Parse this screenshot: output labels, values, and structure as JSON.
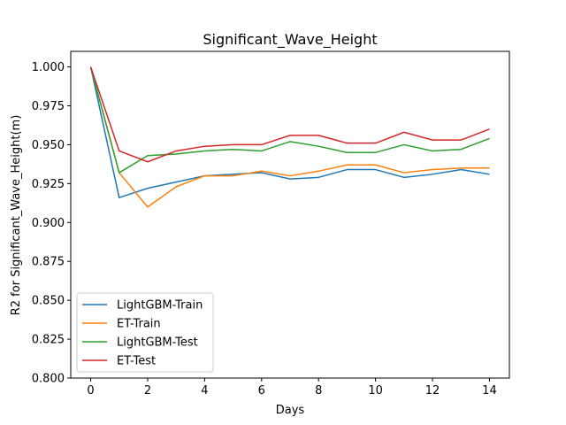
{
  "chart_data": {
    "type": "line",
    "title": "Significant_Wave_Height",
    "xlabel": "Days",
    "ylabel": "R2 for Significant_Wave_Height(m)",
    "xlim": [
      -0.7,
      14.7
    ],
    "ylim": [
      0.8,
      1.01
    ],
    "xticks": [
      0,
      2,
      4,
      6,
      8,
      10,
      12,
      14
    ],
    "yticks": [
      0.8,
      0.825,
      0.85,
      0.875,
      0.9,
      0.925,
      0.95,
      0.975,
      1.0
    ],
    "ytick_labels": [
      "0.800",
      "0.825",
      "0.850",
      "0.875",
      "0.900",
      "0.925",
      "0.950",
      "0.975",
      "1.000"
    ],
    "grid": false,
    "legend_position": "lower-left",
    "x": [
      0,
      1,
      2,
      3,
      4,
      5,
      6,
      7,
      8,
      9,
      10,
      11,
      12,
      13,
      14
    ],
    "series": [
      {
        "name": "LightGBM-Train",
        "color": "#1f77b4",
        "values": [
          1.0,
          0.916,
          0.922,
          0.926,
          0.93,
          0.931,
          0.932,
          0.928,
          0.929,
          0.934,
          0.934,
          0.929,
          0.931,
          0.934,
          0.931
        ]
      },
      {
        "name": "ET-Train",
        "color": "#ff7f0e",
        "values": [
          1.0,
          0.932,
          0.91,
          0.923,
          0.93,
          0.93,
          0.933,
          0.93,
          0.933,
          0.937,
          0.937,
          0.932,
          0.934,
          0.935,
          0.935
        ]
      },
      {
        "name": "LightGBM-Test",
        "color": "#2ca02c",
        "values": [
          1.0,
          0.932,
          0.943,
          0.944,
          0.946,
          0.947,
          0.946,
          0.952,
          0.949,
          0.945,
          0.945,
          0.95,
          0.946,
          0.947,
          0.954
        ]
      },
      {
        "name": "ET-Test",
        "color": "#d62728",
        "values": [
          1.0,
          0.946,
          0.939,
          0.946,
          0.949,
          0.95,
          0.95,
          0.956,
          0.956,
          0.951,
          0.951,
          0.958,
          0.953,
          0.953,
          0.96
        ]
      }
    ]
  }
}
